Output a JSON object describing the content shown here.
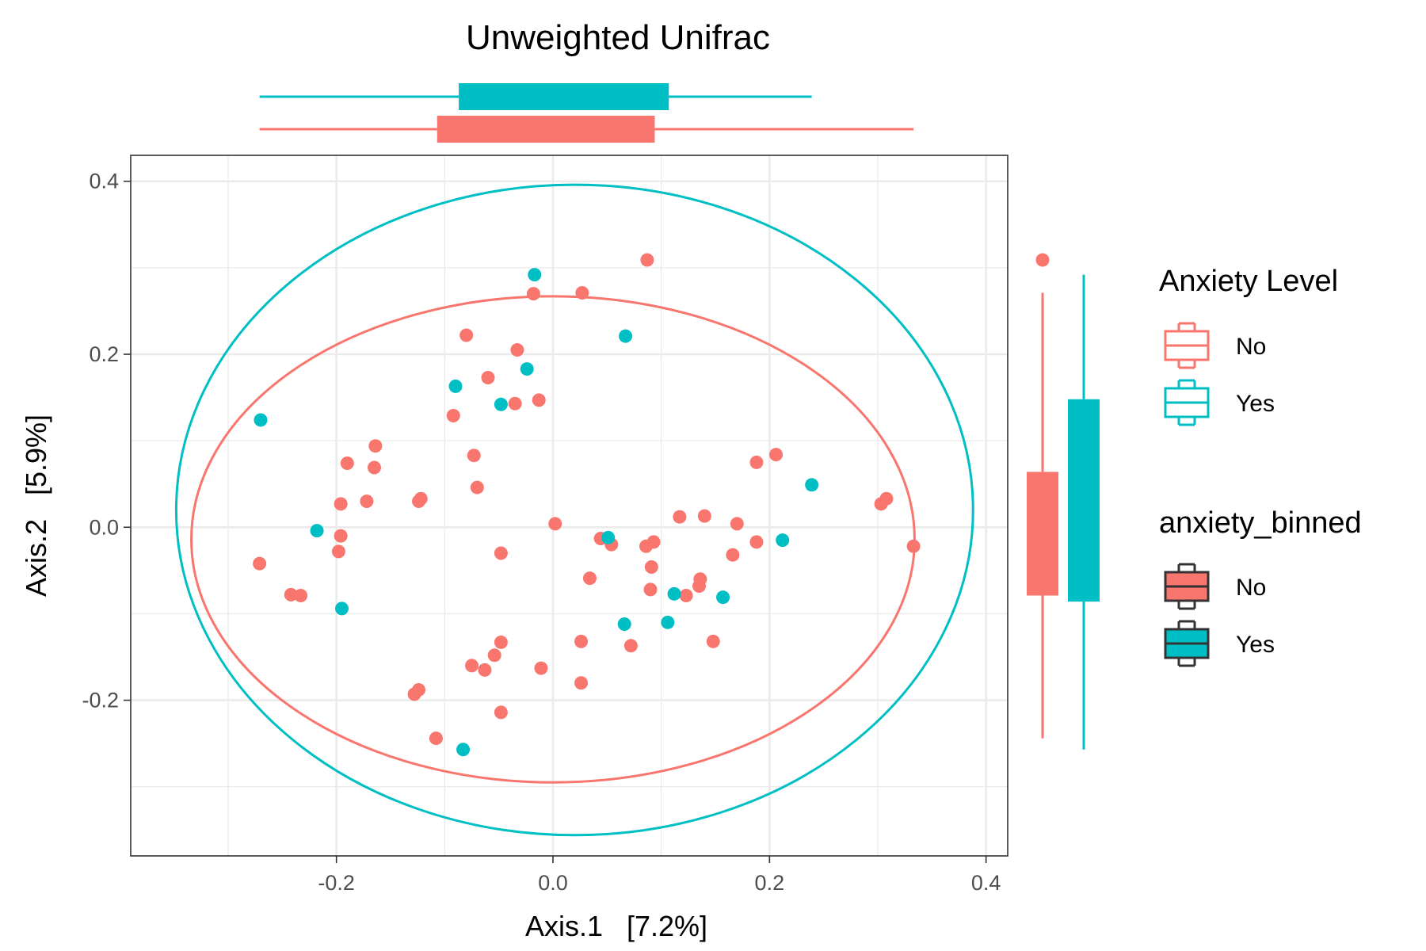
{
  "chart_data": {
    "type": "scatter",
    "title": "Unweighted Unifrac",
    "xlabel": "Axis.1   [7.2%]",
    "ylabel": "Axis.2   [5.9%]",
    "xlim": [
      -0.39,
      0.42
    ],
    "ylim": [
      -0.38,
      0.43
    ],
    "x_ticks": [
      -0.2,
      0.0,
      0.2,
      0.4
    ],
    "x_tick_labels": [
      "-0.2",
      "0.0",
      "0.2",
      "0.4"
    ],
    "y_ticks": [
      -0.2,
      0.0,
      0.2,
      0.4
    ],
    "y_tick_labels": [
      "-0.2",
      "0.0",
      "0.2",
      "0.4"
    ],
    "grid": true,
    "legend_position": "right",
    "series": [
      {
        "name": "No",
        "color": "#F8766D",
        "points": [
          [
            0.087,
            0.309
          ],
          [
            -0.018,
            0.27
          ],
          [
            0.027,
            0.271
          ],
          [
            -0.08,
            0.222
          ],
          [
            -0.033,
            0.205
          ],
          [
            -0.06,
            0.173
          ],
          [
            -0.013,
            0.147
          ],
          [
            -0.035,
            0.143
          ],
          [
            -0.092,
            0.129
          ],
          [
            -0.164,
            0.094
          ],
          [
            -0.19,
            0.074
          ],
          [
            -0.165,
            0.069
          ],
          [
            -0.073,
            0.083
          ],
          [
            -0.07,
            0.046
          ],
          [
            0.206,
            0.084
          ],
          [
            0.188,
            0.075
          ],
          [
            -0.122,
            0.033
          ],
          [
            -0.124,
            0.03
          ],
          [
            -0.172,
            0.03
          ],
          [
            -0.196,
            0.027
          ],
          [
            0.308,
            0.033
          ],
          [
            0.303,
            0.027
          ],
          [
            0.117,
            0.012
          ],
          [
            0.14,
            0.013
          ],
          [
            0.17,
            0.004
          ],
          [
            0.002,
            0.004
          ],
          [
            -0.196,
            -0.01
          ],
          [
            -0.198,
            -0.028
          ],
          [
            0.044,
            -0.013
          ],
          [
            0.054,
            -0.02
          ],
          [
            0.093,
            -0.017
          ],
          [
            0.086,
            -0.022
          ],
          [
            0.188,
            -0.017
          ],
          [
            0.166,
            -0.032
          ],
          [
            0.333,
            -0.022
          ],
          [
            -0.048,
            -0.03
          ],
          [
            -0.271,
            -0.042
          ],
          [
            -0.242,
            -0.078
          ],
          [
            -0.233,
            -0.079
          ],
          [
            0.034,
            -0.059
          ],
          [
            0.091,
            -0.046
          ],
          [
            0.136,
            -0.06
          ],
          [
            0.09,
            -0.072
          ],
          [
            0.123,
            -0.079
          ],
          [
            0.135,
            -0.068
          ],
          [
            -0.048,
            -0.133
          ],
          [
            0.026,
            -0.132
          ],
          [
            0.148,
            -0.132
          ],
          [
            -0.054,
            -0.148
          ],
          [
            -0.075,
            -0.16
          ],
          [
            -0.063,
            -0.165
          ],
          [
            -0.011,
            -0.163
          ],
          [
            0.072,
            -0.137
          ],
          [
            0.026,
            -0.18
          ],
          [
            -0.124,
            -0.188
          ],
          [
            -0.128,
            -0.193
          ],
          [
            -0.048,
            -0.214
          ],
          [
            -0.108,
            -0.244
          ]
        ]
      },
      {
        "name": "Yes",
        "color": "#00BFC4",
        "points": [
          [
            -0.017,
            0.292
          ],
          [
            0.067,
            0.221
          ],
          [
            -0.024,
            0.183
          ],
          [
            -0.09,
            0.163
          ],
          [
            -0.048,
            0.142
          ],
          [
            -0.27,
            0.124
          ],
          [
            0.239,
            0.049
          ],
          [
            -0.218,
            -0.004
          ],
          [
            0.051,
            -0.012
          ],
          [
            0.212,
            -0.015
          ],
          [
            0.112,
            -0.077
          ],
          [
            0.157,
            -0.081
          ],
          [
            -0.195,
            -0.094
          ],
          [
            0.066,
            -0.112
          ],
          [
            0.106,
            -0.11
          ],
          [
            -0.083,
            -0.257
          ]
        ]
      }
    ],
    "ellipses": [
      {
        "series": "No",
        "color": "#F8766D",
        "cx": 0.0,
        "cy": -0.014,
        "rx": 0.334,
        "ry": 0.281
      },
      {
        "series": "Yes",
        "color": "#00BFC4",
        "cx": 0.02,
        "cy": 0.02,
        "rx": 0.368,
        "ry": 0.376
      }
    ],
    "x_marginal_boxplots": [
      {
        "series": "Yes",
        "color": "#00BFC4",
        "min": -0.271,
        "q1": -0.087,
        "q3": 0.107,
        "max": 0.239
      },
      {
        "series": "No",
        "color": "#F8766D",
        "min": -0.271,
        "q1": -0.107,
        "q3": 0.094,
        "max": 0.333
      }
    ],
    "y_marginal_boxplots": [
      {
        "series": "No",
        "color": "#F8766D",
        "min": -0.244,
        "q1": -0.079,
        "q3": 0.064,
        "max": 0.271,
        "outliers": [
          0.309
        ]
      },
      {
        "series": "Yes",
        "color": "#00BFC4",
        "min": -0.257,
        "q1": -0.086,
        "q3": 0.148,
        "max": 0.292,
        "outliers": []
      }
    ]
  },
  "legend": {
    "group1_title": "Anxiety Level",
    "group1_items": [
      {
        "label": "No",
        "color": "#F8766D"
      },
      {
        "label": "Yes",
        "color": "#00BFC4"
      }
    ],
    "group2_title": "anxiety_binned",
    "group2_items": [
      {
        "label": "No",
        "color": "#F8766D"
      },
      {
        "label": "Yes",
        "color": "#00BFC4"
      }
    ]
  }
}
